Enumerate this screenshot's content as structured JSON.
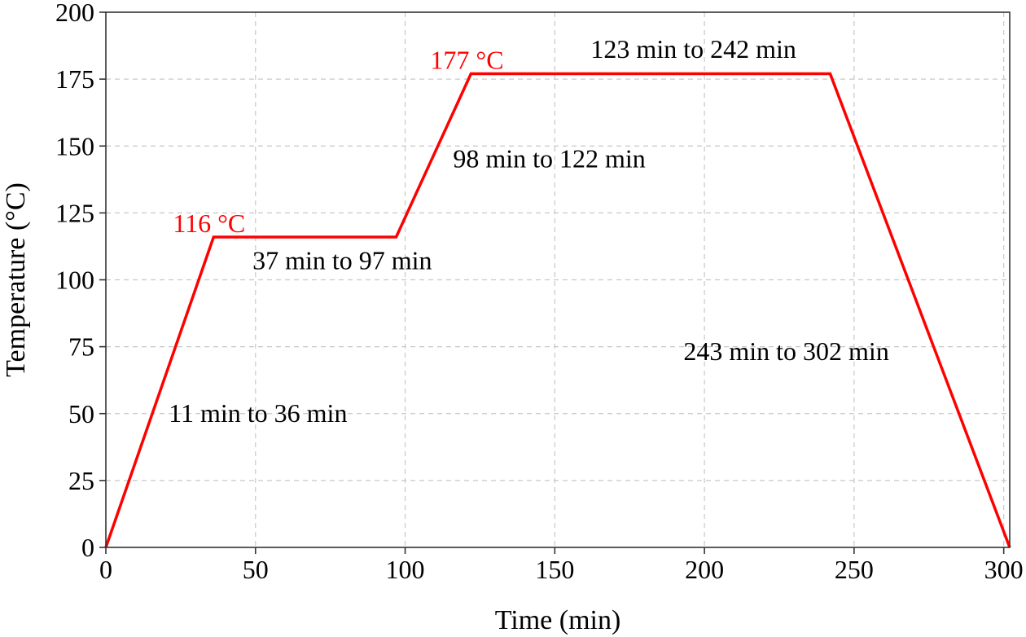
{
  "chart_data": {
    "type": "line",
    "title": "",
    "xlabel": "Time (min)",
    "ylabel": "Temperature (°C)",
    "xlim": [
      0,
      302
    ],
    "ylim": [
      0,
      200
    ],
    "xticks": [
      0,
      50,
      100,
      150,
      200,
      250,
      300
    ],
    "yticks": [
      0,
      25,
      50,
      75,
      100,
      125,
      150,
      175,
      200
    ],
    "grid": true,
    "series": [
      {
        "color": "#ff0000",
        "x": [
          0,
          36,
          97,
          122,
          242,
          302
        ],
        "y": [
          0,
          116,
          116,
          177,
          177,
          0
        ]
      }
    ],
    "annotations": [
      {
        "text": "116 °C",
        "x": 36,
        "y": 116,
        "color": "#ff0000",
        "anchor": "above-left"
      },
      {
        "text": "177 °C",
        "x": 122,
        "y": 177,
        "color": "#ff0000",
        "anchor": "above-left"
      },
      {
        "text": "11 min to 36 min",
        "x": 21,
        "y": 50,
        "color": "#000000",
        "anchor": "right"
      },
      {
        "text": "37 min to 97 min",
        "x": 49,
        "y": 107,
        "color": "#000000",
        "anchor": "right"
      },
      {
        "text": "98 min to 122 min",
        "x": 116,
        "y": 145,
        "color": "#000000",
        "anchor": "right"
      },
      {
        "text": "123 min to 242 min",
        "x": 162,
        "y": 186,
        "color": "#000000",
        "anchor": "right"
      },
      {
        "text": "243 min to 302 min",
        "x": 193,
        "y": 73,
        "color": "#000000",
        "anchor": "right"
      }
    ]
  }
}
